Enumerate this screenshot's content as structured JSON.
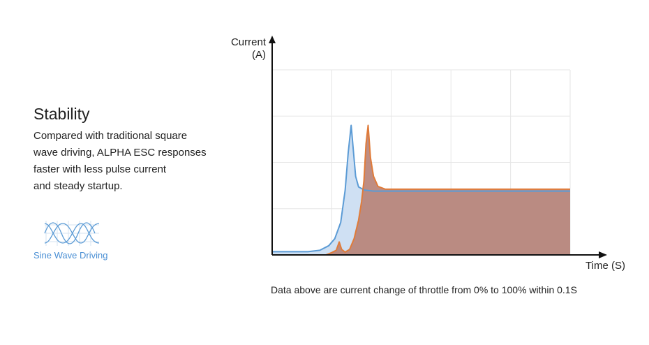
{
  "feature": {
    "title": "Stability",
    "description_lines": [
      "Compared with traditional square",
      "wave driving, ALPHA ESC responses",
      "faster with less pulse current",
      "and steady startup."
    ]
  },
  "sine_badge": {
    "label": "Sine Wave Driving",
    "icon": "sine-wave-icon",
    "color": "#4a8fd4"
  },
  "caption": "Data above are current change of throttle from 0% to 100% within 0.1S",
  "chart_data": {
    "type": "area",
    "ylabel_lines": [
      "Current",
      "(A)"
    ],
    "xlabel": "Time (S)",
    "xlim": [
      0,
      10
    ],
    "ylim": [
      0,
      4
    ],
    "grid": true,
    "series": [
      {
        "color": "#5b9bd5",
        "fill": "#cfe0f3",
        "points": [
          [
            0,
            0.07
          ],
          [
            1.2,
            0.07
          ],
          [
            1.6,
            0.1
          ],
          [
            1.9,
            0.2
          ],
          [
            2.1,
            0.35
          ],
          [
            2.3,
            0.7
          ],
          [
            2.45,
            1.4
          ],
          [
            2.55,
            2.2
          ],
          [
            2.65,
            2.8
          ],
          [
            2.72,
            2.3
          ],
          [
            2.8,
            1.7
          ],
          [
            2.9,
            1.47
          ],
          [
            3.1,
            1.4
          ],
          [
            3.4,
            1.38
          ],
          [
            10,
            1.38
          ]
        ]
      },
      {
        "color": "#e07b39",
        "fill": "#b98378",
        "points": [
          [
            0,
            0
          ],
          [
            1.8,
            0
          ],
          [
            2.0,
            0.05
          ],
          [
            2.15,
            0.1
          ],
          [
            2.25,
            0.28
          ],
          [
            2.33,
            0.12
          ],
          [
            2.45,
            0.06
          ],
          [
            2.6,
            0.12
          ],
          [
            2.75,
            0.35
          ],
          [
            2.9,
            0.75
          ],
          [
            3.0,
            1.15
          ],
          [
            3.08,
            1.6
          ],
          [
            3.15,
            2.4
          ],
          [
            3.22,
            2.8
          ],
          [
            3.3,
            2.1
          ],
          [
            3.4,
            1.7
          ],
          [
            3.55,
            1.48
          ],
          [
            3.8,
            1.42
          ],
          [
            10,
            1.42
          ]
        ]
      }
    ]
  }
}
